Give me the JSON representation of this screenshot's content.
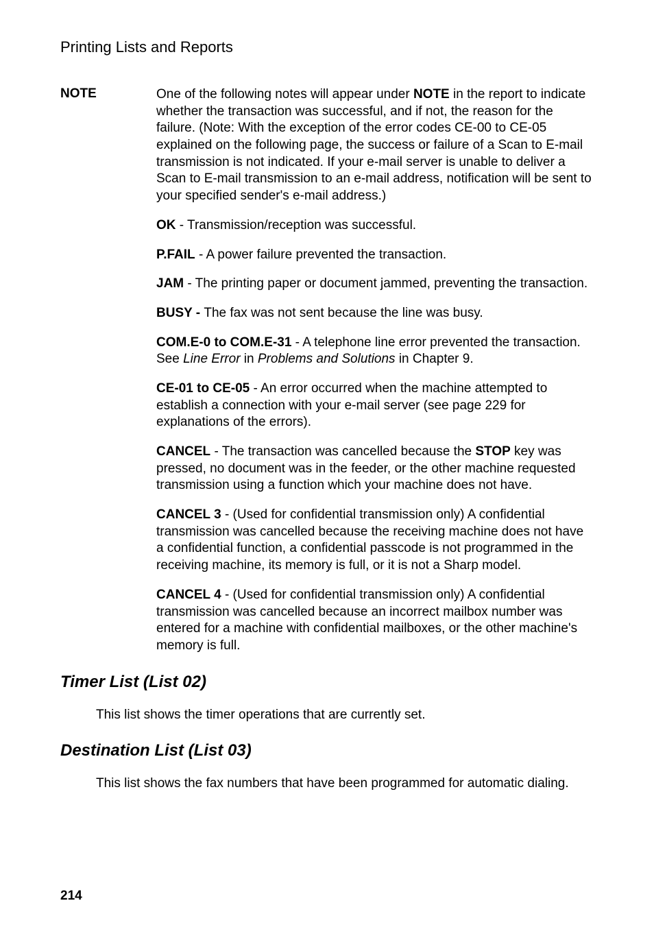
{
  "header": {
    "title": "Printing Lists and Reports"
  },
  "note": {
    "label": "NOTE",
    "body_prefix": "One of the following notes will appear under ",
    "body_bold1": "NOTE",
    "body_suffix": " in the report to indicate whether the transaction was successful, and if not, the reason for the failure. (Note: With the exception of the error codes CE-00 to CE-05 explained on the following page, the success or failure of a Scan to E-mail transmission is not indicated. If your e-mail server is unable to deliver a Scan to E-mail transmission to an e-mail address, notification will be sent to your specified sender's e-mail address.)"
  },
  "items": {
    "ok": {
      "label": "OK",
      "text": " - Transmission/reception was successful."
    },
    "pfail": {
      "label": "P.FAIL",
      "text": " - A power failure prevented the transaction."
    },
    "jam": {
      "label": "JAM",
      "text": " - The printing paper or document jammed, preventing the transaction."
    },
    "busy": {
      "label": "BUSY - ",
      "text": "The fax was not sent because the line was busy."
    },
    "come": {
      "label": "COM.E-0 to COM.E-31",
      "pre": " - A telephone line error prevented the transaction. See ",
      "italic1": "Line Error",
      "mid": " in ",
      "italic2": "Problems and Solutions",
      "post": " in Chapter 9."
    },
    "ce01": {
      "label": "CE-01 to CE-05",
      "text": " - An error occurred when the machine attempted to establish a connection with your e-mail server (see page 229 for explanations of the errors)."
    },
    "cancel": {
      "label": "CANCEL",
      "pre": " - The transaction was cancelled because the ",
      "bold": "STOP",
      "post": " key was pressed, no document was in the feeder, or the other machine requested transmission using a function which your machine does not have."
    },
    "cancel3": {
      "label": "CANCEL 3",
      "text": " - (Used for confidential transmission only) A confidential transmission was cancelled because the receiving machine does not have a confidential function, a confidential passcode is not programmed in the receiving machine, its memory is full, or it is not a Sharp model."
    },
    "cancel4": {
      "label": "CANCEL 4",
      "text": " - (Used for confidential transmission only) A confidential transmission was cancelled because an incorrect mailbox number was entered for a machine with confidential mailboxes, or the other machine's memory is full."
    }
  },
  "timer": {
    "title": "Timer List (List 02)",
    "body": "This list shows the timer operations that are currently set."
  },
  "dest": {
    "title": "Destination List (List 03)",
    "body": "This list shows the fax numbers that have been programmed for automatic dialing."
  },
  "page_number": "214"
}
